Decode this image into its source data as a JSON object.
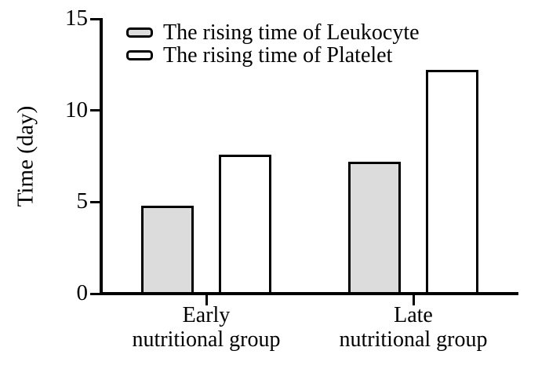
{
  "chart_data": {
    "type": "bar",
    "title": "",
    "ylabel": "Time (day)",
    "xlabel": "",
    "ylim": [
      0,
      15
    ],
    "yticks": [
      0,
      5,
      10,
      15
    ],
    "grid": false,
    "legend_position": "top-left-inside",
    "categories": [
      {
        "label_line1": "Early",
        "label_line2": "nutritional group"
      },
      {
        "label_line1": "Late",
        "label_line2": "nutritional group"
      }
    ],
    "series": [
      {
        "name": "The rising time of Leukocyte",
        "fill": "#dcdcdc",
        "stroke": "#000000",
        "values": [
          4.8,
          7.2
        ]
      },
      {
        "name": "The rising time of Platelet",
        "fill": "#ffffff",
        "stroke": "#000000",
        "values": [
          7.6,
          12.2
        ]
      }
    ],
    "colors": {
      "axis": "#000000",
      "text": "#000000",
      "background": "#ffffff"
    }
  }
}
